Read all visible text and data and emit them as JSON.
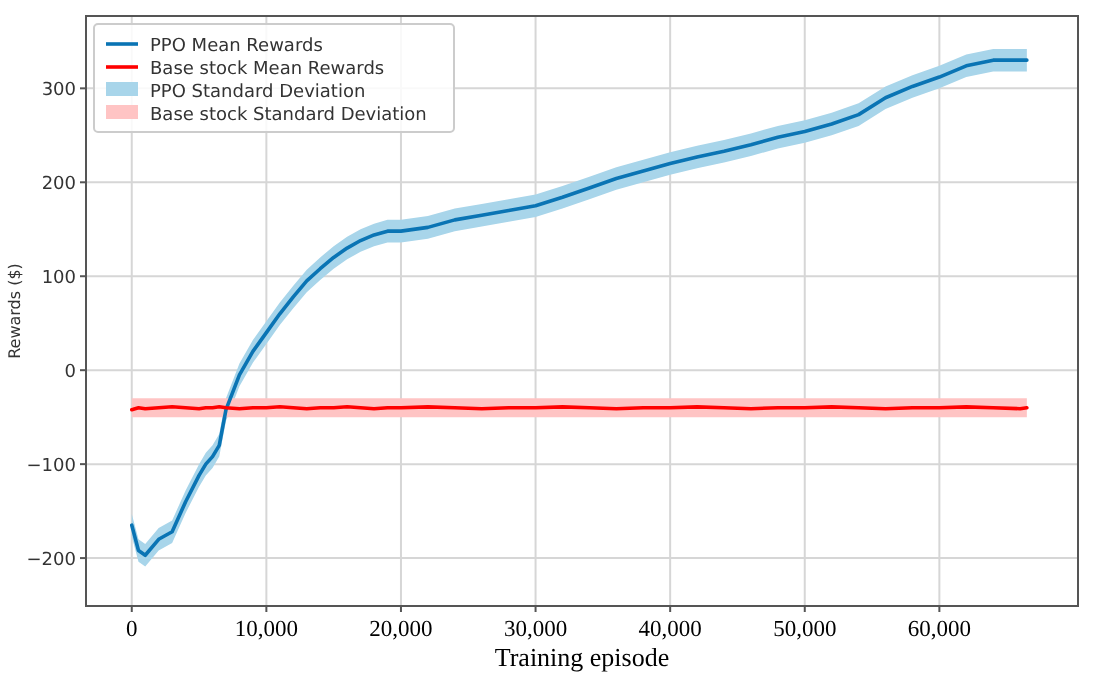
{
  "chart_data": {
    "type": "line",
    "xlabel": "Training episode",
    "ylabel": "Rewards ($)",
    "x": [
      0,
      500,
      1000,
      2000,
      3000,
      4000,
      5000,
      5500,
      6000,
      6500,
      7000,
      8000,
      9000,
      10000,
      11000,
      12000,
      13000,
      14000,
      15000,
      16000,
      17000,
      18000,
      19000,
      20000,
      22000,
      24000,
      26000,
      28000,
      30000,
      32000,
      34000,
      36000,
      38000,
      40000,
      42000,
      44000,
      46000,
      48000,
      50000,
      52000,
      54000,
      56000,
      58000,
      60000,
      62000,
      64000,
      66000,
      66500
    ],
    "series": [
      {
        "type": "area",
        "name": "PPO Standard Deviation",
        "color": "#a8d5ea",
        "values": [
          null,
          null,
          null,
          null,
          null,
          null,
          null,
          null,
          null,
          null,
          null,
          null,
          null,
          null,
          null,
          null,
          null,
          null,
          null,
          null,
          null,
          null,
          null,
          null,
          null,
          null,
          null,
          null,
          null,
          null,
          null,
          null,
          null,
          null,
          null,
          null,
          null,
          null,
          null,
          null,
          null,
          null,
          null,
          null,
          null,
          null,
          null,
          null
        ],
        "lower": [
          -177,
          -204,
          -209,
          -192,
          -184,
          -152,
          -124,
          -112,
          -104,
          -92,
          -54,
          -17,
          8,
          28,
          48,
          66,
          83,
          96,
          108,
          118,
          126,
          132,
          136,
          136,
          140,
          148,
          153,
          158,
          163,
          172,
          182,
          192,
          200,
          208,
          215,
          221,
          228,
          236,
          242,
          250,
          260,
          278,
          290,
          300,
          312,
          318,
          318,
          318
        ],
        "upper": [
          -153,
          -180,
          -185,
          -168,
          -160,
          -128,
          -100,
          -88,
          -80,
          -68,
          -30,
          7,
          32,
          52,
          72,
          90,
          107,
          120,
          132,
          142,
          150,
          156,
          160,
          160,
          164,
          172,
          177,
          182,
          187,
          196,
          206,
          216,
          224,
          232,
          239,
          245,
          252,
          260,
          266,
          274,
          284,
          302,
          314,
          324,
          336,
          342,
          342,
          342
        ]
      },
      {
        "type": "area",
        "name": "Base stock Standard Deviation",
        "color": "#ffc4c4",
        "values": [
          null,
          null,
          null,
          null,
          null,
          null,
          null,
          null,
          null,
          null,
          null,
          null,
          null,
          null,
          null,
          null,
          null,
          null,
          null,
          null,
          null,
          null,
          null,
          null,
          null,
          null,
          null,
          null,
          null,
          null,
          null,
          null,
          null,
          null,
          null,
          null,
          null,
          null,
          null,
          null,
          null,
          null,
          null,
          null,
          null,
          null,
          null,
          null
        ],
        "lower": [
          -50,
          -50,
          -50,
          -50,
          -50,
          -50,
          -50,
          -50,
          -50,
          -50,
          -50,
          -50,
          -50,
          -50,
          -50,
          -50,
          -50,
          -50,
          -50,
          -50,
          -50,
          -50,
          -50,
          -50,
          -50,
          -50,
          -50,
          -50,
          -50,
          -50,
          -50,
          -50,
          -50,
          -50,
          -50,
          -50,
          -50,
          -50,
          -50,
          -50,
          -50,
          -50,
          -50,
          -50,
          -50,
          -50,
          -50,
          -50
        ],
        "upper": [
          -30,
          -30,
          -30,
          -30,
          -30,
          -30,
          -30,
          -30,
          -30,
          -30,
          -30,
          -30,
          -30,
          -30,
          -30,
          -30,
          -30,
          -30,
          -30,
          -30,
          -30,
          -30,
          -30,
          -30,
          -30,
          -30,
          -30,
          -30,
          -30,
          -30,
          -30,
          -30,
          -30,
          -30,
          -30,
          -30,
          -30,
          -30,
          -30,
          -30,
          -30,
          -30,
          -30,
          -30,
          -30,
          -30,
          -30,
          -30
        ]
      },
      {
        "name": "PPO Mean Rewards",
        "color": "#0a74b4",
        "values": [
          -165,
          -192,
          -197,
          -180,
          -172,
          -140,
          -112,
          -100,
          -92,
          -80,
          -42,
          -5,
          20,
          40,
          60,
          78,
          95,
          108,
          120,
          130,
          138,
          144,
          148,
          148,
          152,
          160,
          165,
          170,
          175,
          184,
          194,
          204,
          212,
          220,
          227,
          233,
          240,
          248,
          254,
          262,
          272,
          290,
          302,
          312,
          324,
          330,
          330,
          330
        ]
      },
      {
        "name": "Base stock Mean Rewards",
        "color": "#ff0000",
        "values": [
          -42,
          -40,
          -41,
          -40,
          -39,
          -40,
          -41,
          -40,
          -40,
          -39,
          -40,
          -41,
          -40,
          -40,
          -39,
          -40,
          -41,
          -40,
          -40,
          -39,
          -40,
          -41,
          -40,
          -40,
          -39,
          -40,
          -41,
          -40,
          -40,
          -39,
          -40,
          -41,
          -40,
          -40,
          -39,
          -40,
          -41,
          -40,
          -40,
          -39,
          -40,
          -41,
          -40,
          -40,
          -39,
          -40,
          -41,
          -40
        ]
      }
    ],
    "xlim": [
      -3400,
      70300
    ],
    "ylim": [
      -251,
      377
    ],
    "xticks": [
      0,
      {
        "value": 10000,
        "label": "10,000"
      },
      {
        "value": 20000,
        "label": "20,000"
      },
      {
        "value": 30000,
        "label": "30,000"
      },
      {
        "value": 40000,
        "label": "40,000"
      },
      {
        "value": 50000,
        "label": "50,000"
      },
      {
        "value": 60000,
        "label": "60,000"
      }
    ],
    "yticks": [
      {
        "value": -200,
        "label": "−200"
      },
      {
        "value": -100,
        "label": "−100"
      },
      0,
      100,
      200,
      300
    ],
    "grid": true,
    "legend": "top left"
  }
}
